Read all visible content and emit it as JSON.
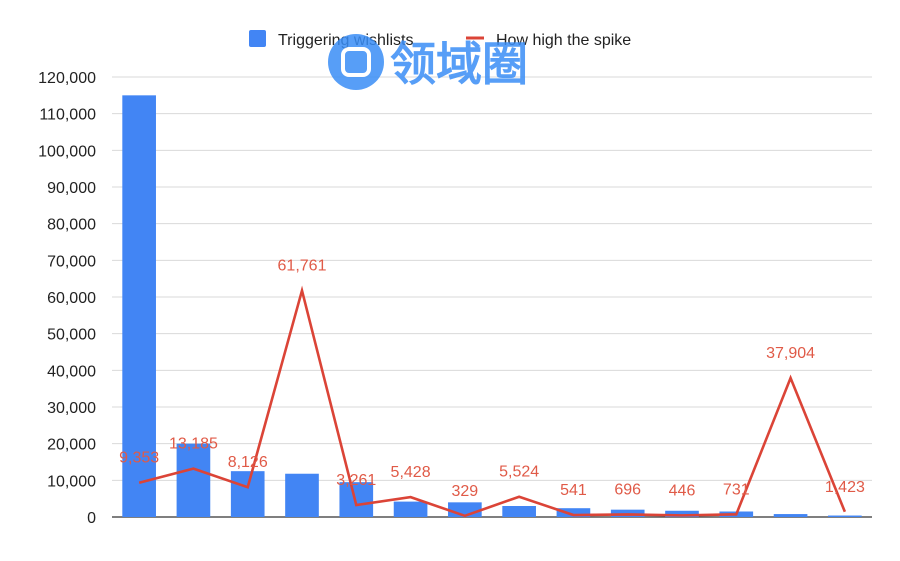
{
  "chart_data": {
    "type": "bar",
    "title": "",
    "xlabel": "",
    "ylabel": "",
    "ylim": [
      0,
      120000
    ],
    "y_ticks": [
      "0",
      "10,000",
      "20,000",
      "30,000",
      "40,000",
      "50,000",
      "60,000",
      "70,000",
      "80,000",
      "90,000",
      "100,000",
      "110,000",
      "120,000"
    ],
    "grid": true,
    "legend_position": "top",
    "series": [
      {
        "name": "Triggering wishlists",
        "type": "bar",
        "color": "#4285f4",
        "values": [
          115000,
          20000,
          12500,
          11800,
          9500,
          4200,
          4000,
          3000,
          2400,
          2000,
          1700,
          1500,
          800,
          400
        ]
      },
      {
        "name": "How high the spike",
        "type": "line",
        "color": "#db4437",
        "values": [
          9353,
          13185,
          8126,
          61761,
          3261,
          5428,
          329,
          5524,
          541,
          696,
          446,
          731,
          37904,
          1423
        ],
        "labels": [
          "9,353",
          "13,185",
          "8,126",
          "61,761",
          "3,261",
          "5,428",
          "329",
          "5,524",
          "541",
          "696",
          "446",
          "731",
          "37,904",
          "1,423"
        ]
      }
    ]
  },
  "watermark": {
    "text": "领域圈",
    "color": "#3a8ef6"
  }
}
